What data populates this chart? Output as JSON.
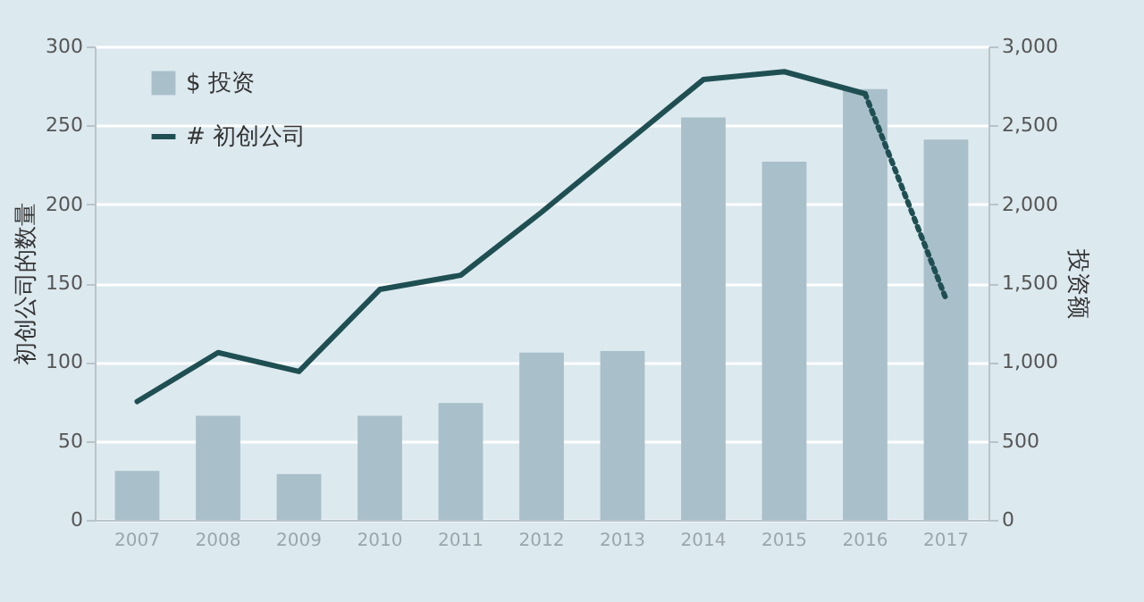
{
  "chart_data": {
    "type": "bar",
    "ylabel": "初创公司的数量",
    "y2label": "投资额",
    "categories": [
      "2007",
      "2008",
      "2009",
      "2010",
      "2011",
      "2012",
      "2013",
      "2014",
      "2015",
      "2016",
      "2017"
    ],
    "series": [
      {
        "name": "$ 投资",
        "axis": "y2",
        "color": "#a9bfc9",
        "values": [
          310,
          660,
          290,
          660,
          740,
          1060,
          1070,
          2550,
          2270,
          2730,
          2410
        ]
      },
      {
        "name": "# 初创公司",
        "type": "line",
        "axis": "y",
        "color": "#1f4f52",
        "line_style": "solid",
        "values": [
          75,
          106,
          94,
          146,
          155,
          195,
          237,
          279,
          284,
          270,
          null
        ]
      },
      {
        "type": "line",
        "axis": "y",
        "color": "#1f4f52",
        "line_style": "dotted",
        "values": [
          null,
          null,
          null,
          null,
          null,
          null,
          null,
          null,
          null,
          270,
          140
        ]
      }
    ],
    "ylim": [
      0,
      300
    ],
    "yticks": [
      0,
      50,
      100,
      150,
      200,
      250,
      300
    ],
    "y2lim": [
      0,
      3000
    ],
    "y2ticks": [
      {
        "value": 0,
        "label": "0"
      },
      {
        "value": 500,
        "label": "500"
      },
      {
        "value": 1000,
        "label": "1,000"
      },
      {
        "value": 1500,
        "label": "1,500"
      },
      {
        "value": 2000,
        "label": "2,000"
      },
      {
        "value": 2500,
        "label": "2,500"
      },
      {
        "value": 3000,
        "label": "3,000"
      }
    ],
    "grid": "y",
    "legend": "top left"
  }
}
